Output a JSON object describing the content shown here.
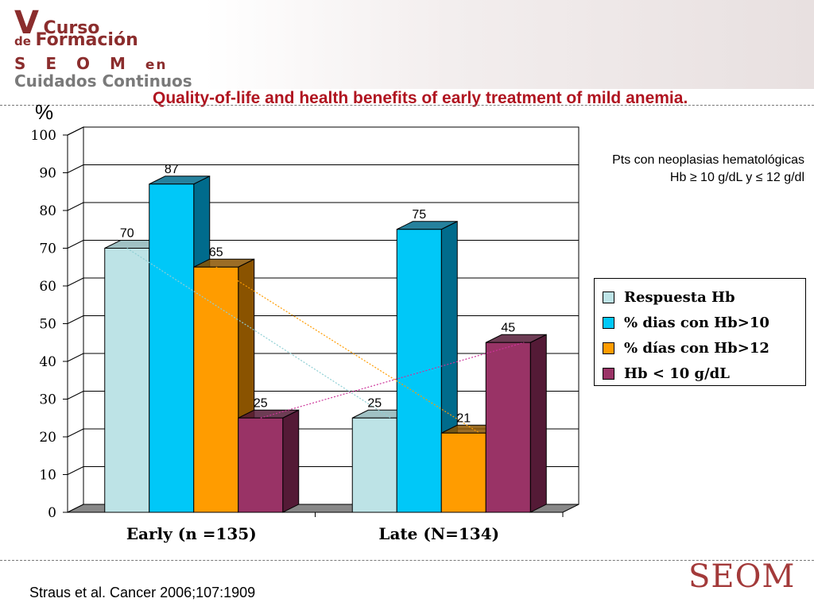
{
  "header": {
    "logo": {
      "v": "V",
      "curso": "Curso",
      "de": "de",
      "formacion": "Formación",
      "seom": "S E O M",
      "en": "en",
      "cuidados": "Cuidados Continuos"
    },
    "title": "Quality-of-life and health benefits of early treatment of mild anemia."
  },
  "note": {
    "line1": "Pts con neoplasias hematológicas",
    "line2": "Hb ≥ 10 g/dL y ≤ 12 g/dl"
  },
  "citation": "Straus et al. Cancer 2006;107:1909",
  "footer_logo": "SEOM",
  "chart_data": {
    "type": "bar",
    "ylabel": "%",
    "ylim": [
      0,
      100
    ],
    "yticks": [
      0,
      10,
      20,
      30,
      40,
      50,
      60,
      70,
      80,
      90,
      100
    ],
    "grid": true,
    "legend_position": "right",
    "categories": [
      "Early (n =135)",
      "Late (N=134)"
    ],
    "series": [
      {
        "name": "Respuesta Hb",
        "values": [
          70,
          25
        ],
        "color": "#bde3e6",
        "side": "#8fb6ba"
      },
      {
        "name": "% dias con Hb>10",
        "values": [
          87,
          75
        ],
        "color": "#00c8f8",
        "side": "#006b8c"
      },
      {
        "name": "% días con Hb>12",
        "values": [
          65,
          21
        ],
        "color": "#ff9c00",
        "side": "#8a5300"
      },
      {
        "name": "Hb < 10 g/dL",
        "values": [
          25,
          45
        ],
        "color": "#993366",
        "side": "#541a36"
      }
    ],
    "trend_lines": [
      {
        "series": 0,
        "color": "#8fcfd4"
      },
      {
        "series": 2,
        "color": "#ff9c00"
      },
      {
        "series": 3,
        "color": "#cc3399"
      }
    ]
  }
}
